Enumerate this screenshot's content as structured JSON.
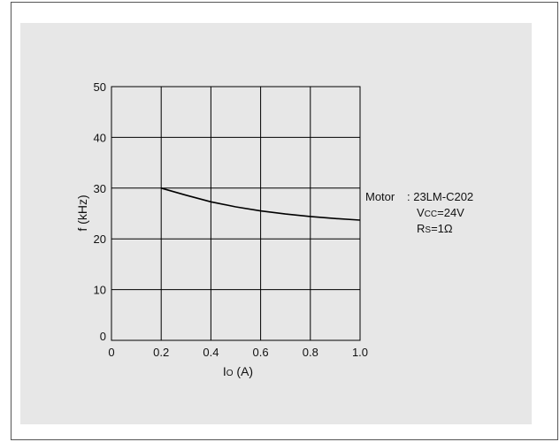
{
  "chart_data": {
    "type": "line",
    "xlabel_main": "I",
    "xlabel_sub": "O",
    "xlabel_unit": " (A)",
    "ylabel": "f (kHz)",
    "xlim": [
      0,
      1.0
    ],
    "ylim": [
      0,
      50
    ],
    "xticks": [
      "0",
      "0.2",
      "0.4",
      "0.6",
      "0.8",
      "1.0"
    ],
    "yticks": [
      "0",
      "10",
      "20",
      "30",
      "40",
      "50"
    ],
    "grid": true,
    "series": [
      {
        "x": [
          0.2,
          0.3,
          0.4,
          0.5,
          0.6,
          0.7,
          0.8,
          0.9,
          1.0
        ],
        "y": [
          30.0,
          28.6,
          27.3,
          26.3,
          25.5,
          24.9,
          24.4,
          24.0,
          23.7
        ]
      }
    ],
    "annotation": {
      "motor_label": "Motor",
      "motor_value": ": 23LM-C202",
      "vcc_main": "V",
      "vcc_sub": "CC",
      "vcc_value": "=24V",
      "rs_main": "R",
      "rs_sub": "S",
      "rs_value": "=1Ω"
    }
  }
}
